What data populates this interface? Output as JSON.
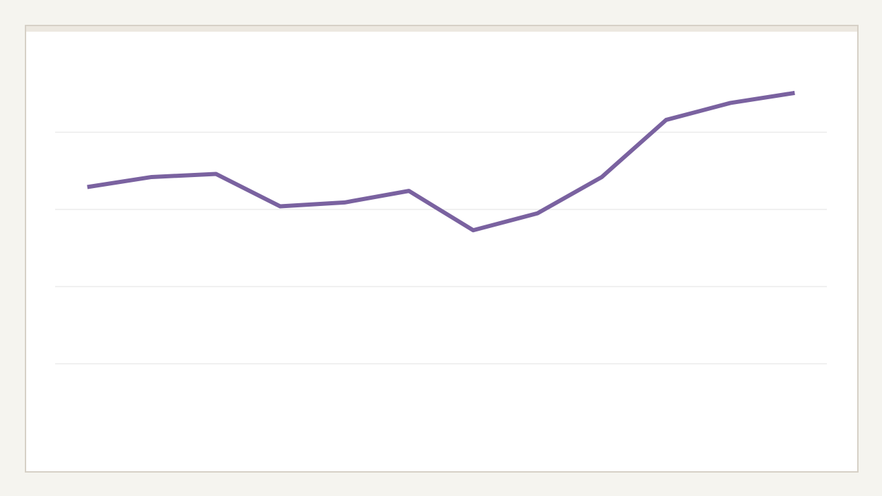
{
  "chart_data": {
    "type": "line",
    "categories": [
      null,
      null,
      null,
      null,
      null,
      null,
      null,
      null,
      null,
      null,
      null,
      null
    ],
    "values": [
      3.29,
      3.42,
      3.46,
      3.04,
      3.09,
      3.24,
      2.73,
      2.95,
      3.42,
      4.16,
      4.38,
      4.51
    ],
    "color": "#7a62a0",
    "ylim": [
      0,
      5
    ],
    "yticks": [
      1,
      2,
      3,
      4
    ],
    "grid": true
  }
}
